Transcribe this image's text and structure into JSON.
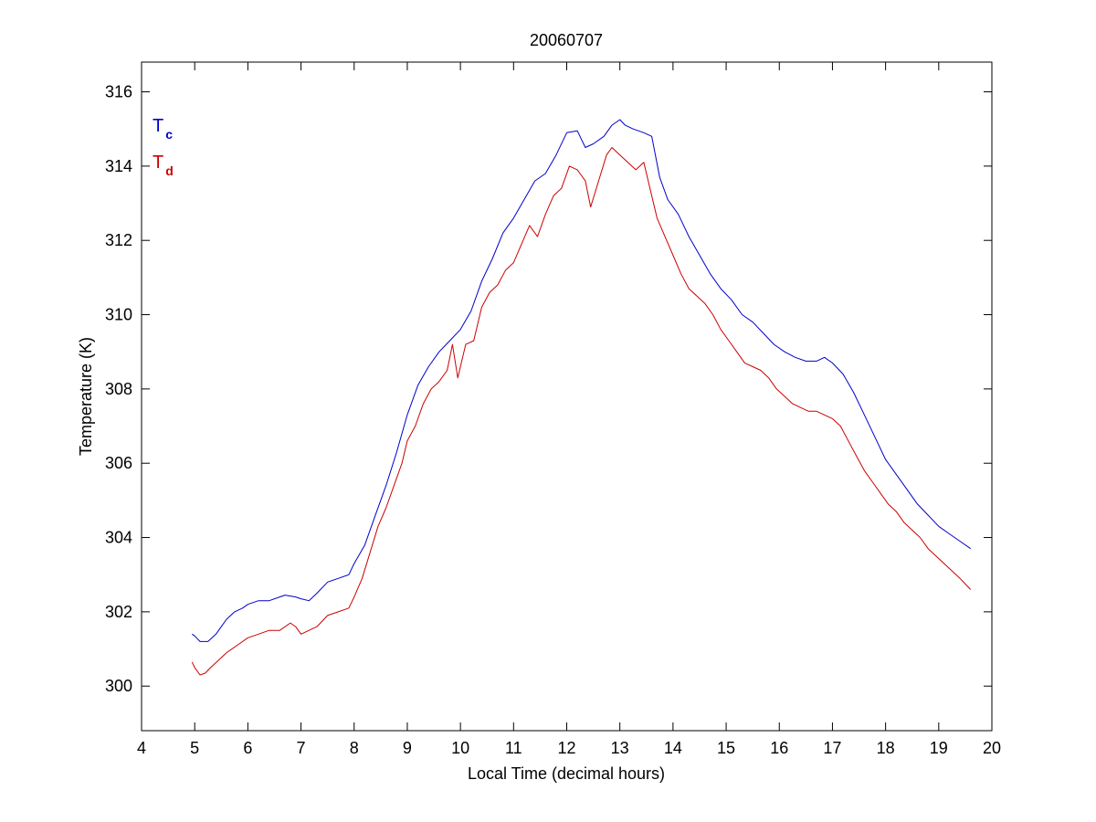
{
  "chart_data": {
    "type": "line",
    "title": "20060707",
    "xlabel": "Local Time (decimal hours)",
    "ylabel": "Temperature (K)",
    "xlim": [
      4,
      20
    ],
    "ylim": [
      298.8,
      316.8
    ],
    "xticks": [
      4,
      5,
      6,
      7,
      8,
      9,
      10,
      11,
      12,
      13,
      14,
      15,
      16,
      17,
      18,
      19,
      20
    ],
    "yticks": [
      300,
      302,
      304,
      306,
      308,
      310,
      312,
      314,
      316
    ],
    "grid": false,
    "legend_position": "top-left",
    "series": [
      {
        "name": "T_c",
        "label_main": "T",
        "label_sub": "c",
        "color": "#0000cc",
        "x": [
          4.95,
          5.0,
          5.1,
          5.25,
          5.4,
          5.5,
          5.6,
          5.75,
          5.9,
          6.0,
          6.2,
          6.4,
          6.6,
          6.7,
          6.9,
          7.0,
          7.15,
          7.3,
          7.5,
          7.7,
          7.9,
          8.0,
          8.2,
          8.4,
          8.6,
          8.8,
          9.0,
          9.2,
          9.4,
          9.6,
          9.8,
          10.0,
          10.2,
          10.4,
          10.6,
          10.8,
          11.0,
          11.2,
          11.4,
          11.6,
          11.8,
          12.0,
          12.2,
          12.35,
          12.5,
          12.7,
          12.85,
          13.0,
          13.1,
          13.25,
          13.45,
          13.6,
          13.75,
          13.9,
          14.1,
          14.3,
          14.5,
          14.7,
          14.9,
          15.1,
          15.3,
          15.5,
          15.7,
          15.9,
          16.1,
          16.3,
          16.5,
          16.7,
          16.85,
          17.0,
          17.2,
          17.4,
          17.6,
          17.8,
          18.0,
          18.2,
          18.4,
          18.6,
          18.8,
          19.0,
          19.2,
          19.4,
          19.6
        ],
        "y": [
          301.4,
          301.35,
          301.2,
          301.2,
          301.4,
          301.6,
          301.8,
          302.0,
          302.1,
          302.2,
          302.3,
          302.3,
          302.4,
          302.45,
          302.4,
          302.35,
          302.3,
          302.5,
          302.8,
          302.9,
          303.0,
          303.3,
          303.8,
          304.6,
          305.4,
          306.3,
          307.3,
          308.1,
          308.6,
          309.0,
          309.3,
          309.6,
          310.1,
          310.9,
          311.5,
          312.2,
          312.6,
          313.1,
          313.6,
          313.8,
          314.3,
          314.9,
          314.95,
          314.5,
          314.6,
          314.8,
          315.1,
          315.25,
          315.1,
          315.0,
          314.9,
          314.8,
          313.7,
          313.1,
          312.7,
          312.1,
          311.6,
          311.1,
          310.7,
          310.4,
          310.0,
          309.8,
          309.5,
          309.2,
          309.0,
          308.85,
          308.75,
          308.75,
          308.85,
          308.7,
          308.4,
          307.9,
          307.3,
          306.7,
          306.1,
          305.7,
          305.3,
          304.9,
          304.6,
          304.3,
          304.1,
          303.9,
          303.7
        ]
      },
      {
        "name": "T_d",
        "label_main": "T",
        "label_sub": "d",
        "color": "#cc0000",
        "x": [
          4.95,
          5.0,
          5.1,
          5.2,
          5.3,
          5.45,
          5.6,
          5.8,
          6.0,
          6.2,
          6.4,
          6.6,
          6.8,
          6.9,
          7.0,
          7.15,
          7.3,
          7.5,
          7.7,
          7.9,
          8.0,
          8.15,
          8.3,
          8.45,
          8.6,
          8.75,
          8.9,
          9.0,
          9.15,
          9.3,
          9.45,
          9.6,
          9.75,
          9.85,
          9.95,
          10.1,
          10.25,
          10.4,
          10.55,
          10.7,
          10.85,
          11.0,
          11.15,
          11.3,
          11.45,
          11.6,
          11.75,
          11.9,
          12.05,
          12.2,
          12.35,
          12.45,
          12.6,
          12.75,
          12.85,
          13.0,
          13.15,
          13.3,
          13.45,
          13.55,
          13.7,
          13.85,
          14.0,
          14.15,
          14.3,
          14.45,
          14.6,
          14.75,
          14.9,
          15.05,
          15.2,
          15.35,
          15.5,
          15.65,
          15.8,
          15.95,
          16.1,
          16.25,
          16.4,
          16.55,
          16.7,
          16.85,
          17.0,
          17.15,
          17.3,
          17.45,
          17.6,
          17.75,
          17.9,
          18.05,
          18.2,
          18.35,
          18.5,
          18.65,
          18.8,
          18.95,
          19.1,
          19.25,
          19.4,
          19.6
        ],
        "y": [
          300.65,
          300.5,
          300.3,
          300.35,
          300.5,
          300.7,
          300.9,
          301.1,
          301.3,
          301.4,
          301.5,
          301.5,
          301.7,
          301.6,
          301.4,
          301.5,
          301.6,
          301.9,
          302.0,
          302.1,
          302.4,
          302.9,
          303.6,
          304.3,
          304.8,
          305.4,
          306.0,
          306.6,
          307.0,
          307.6,
          308.0,
          308.2,
          308.5,
          309.2,
          308.3,
          309.2,
          309.3,
          310.2,
          310.6,
          310.8,
          311.2,
          311.4,
          311.9,
          312.4,
          312.1,
          312.7,
          313.2,
          313.4,
          314.0,
          313.9,
          313.6,
          312.9,
          313.6,
          314.3,
          314.5,
          314.3,
          314.1,
          313.9,
          314.1,
          313.5,
          312.6,
          312.1,
          311.6,
          311.1,
          310.7,
          310.5,
          310.3,
          310.0,
          309.6,
          309.3,
          309.0,
          308.7,
          308.6,
          308.5,
          308.3,
          308.0,
          307.8,
          307.6,
          307.5,
          307.4,
          307.4,
          307.3,
          307.2,
          307.0,
          306.6,
          306.2,
          305.8,
          305.5,
          305.2,
          304.9,
          304.7,
          304.4,
          304.2,
          304.0,
          303.7,
          303.5,
          303.3,
          303.1,
          302.9,
          302.6
        ]
      }
    ]
  }
}
